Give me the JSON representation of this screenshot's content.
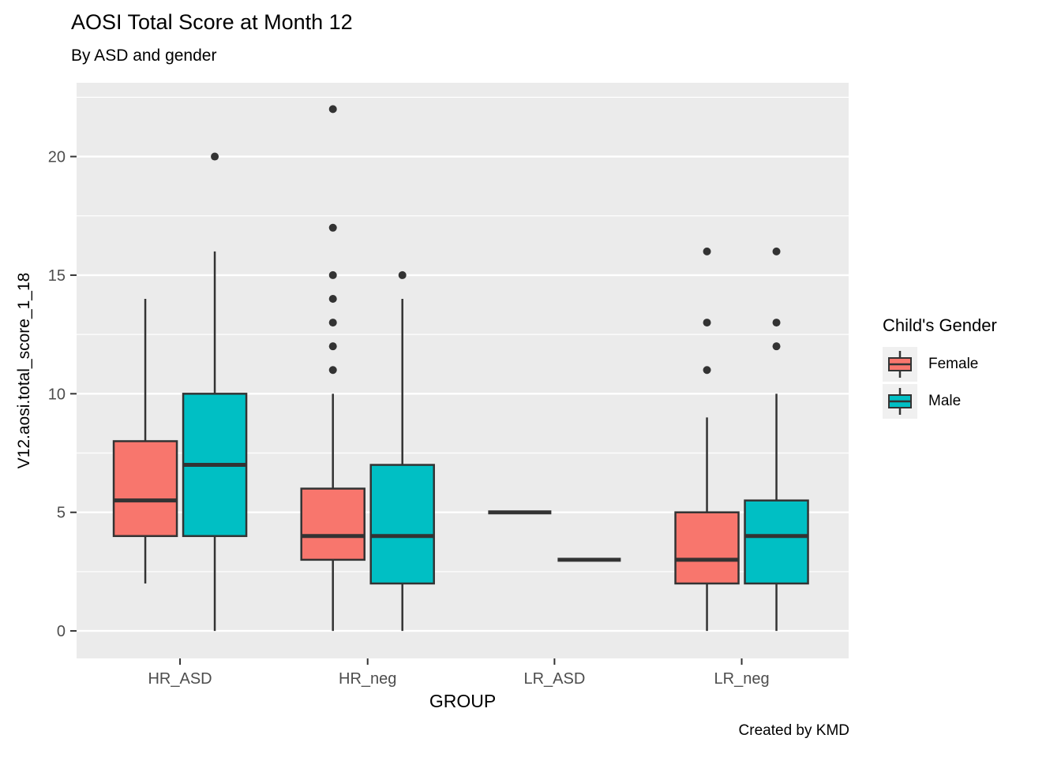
{
  "chart_data": {
    "type": "boxplot",
    "title": "AOSI Total Score at Month 12",
    "subtitle": "By ASD and gender",
    "xlabel": "GROUP",
    "ylabel": "V12.aosi.total_score_1_18",
    "caption": "Created by KMD",
    "categories": [
      "HR_ASD",
      "HR_neg",
      "LR_ASD",
      "LR_neg"
    ],
    "y_axis": {
      "ticks": [
        0,
        5,
        10,
        15,
        20
      ],
      "minor_ticks": [
        2.5,
        7.5,
        12.5,
        17.5,
        22.5
      ],
      "range": [
        -1.16,
        23.11
      ]
    },
    "legend": {
      "title": "Child's Gender",
      "entries": [
        {
          "label": "Female",
          "color": "#F8766D"
        },
        {
          "label": "Male",
          "color": "#00BFC4"
        }
      ]
    },
    "series": [
      {
        "name": "Female",
        "color": "#F8766D",
        "boxes": [
          {
            "group": "HR_ASD",
            "whisker_low": 2,
            "q1": 4,
            "median": 5.5,
            "q3": 8,
            "whisker_high": 14,
            "outliers": []
          },
          {
            "group": "HR_neg",
            "whisker_low": 0,
            "q1": 3,
            "median": 4,
            "q3": 6,
            "whisker_high": 10,
            "outliers": [
              11,
              12,
              13,
              14,
              15,
              17,
              22
            ]
          },
          {
            "group": "LR_ASD",
            "whisker_low": 5,
            "q1": 5,
            "median": 5,
            "q3": 5,
            "whisker_high": 5,
            "outliers": []
          },
          {
            "group": "LR_neg",
            "whisker_low": 0,
            "q1": 2,
            "median": 3,
            "q3": 5,
            "whisker_high": 9,
            "outliers": [
              11,
              13,
              16
            ]
          }
        ]
      },
      {
        "name": "Male",
        "color": "#00BFC4",
        "boxes": [
          {
            "group": "HR_ASD",
            "whisker_low": 0,
            "q1": 4,
            "median": 7,
            "q3": 10,
            "whisker_high": 16,
            "outliers": [
              20
            ]
          },
          {
            "group": "HR_neg",
            "whisker_low": 0,
            "q1": 2,
            "median": 4,
            "q3": 7,
            "whisker_high": 14,
            "outliers": [
              15
            ]
          },
          {
            "group": "LR_ASD",
            "whisker_low": 3,
            "q1": 3,
            "median": 3,
            "q3": 3,
            "whisker_high": 3,
            "outliers": []
          },
          {
            "group": "LR_neg",
            "whisker_low": 0,
            "q1": 2,
            "median": 4,
            "q3": 5.5,
            "whisker_high": 10,
            "outliers": [
              12,
              13,
              16
            ]
          }
        ]
      }
    ],
    "style": {
      "panel_bg": "#EBEBEB",
      "grid_color": "#FFFFFF",
      "box_stroke": "#333333",
      "tick_color": "#333333",
      "tick_label_color": "#4D4D4D",
      "legend_key_bg": "#F0F0F0"
    }
  }
}
